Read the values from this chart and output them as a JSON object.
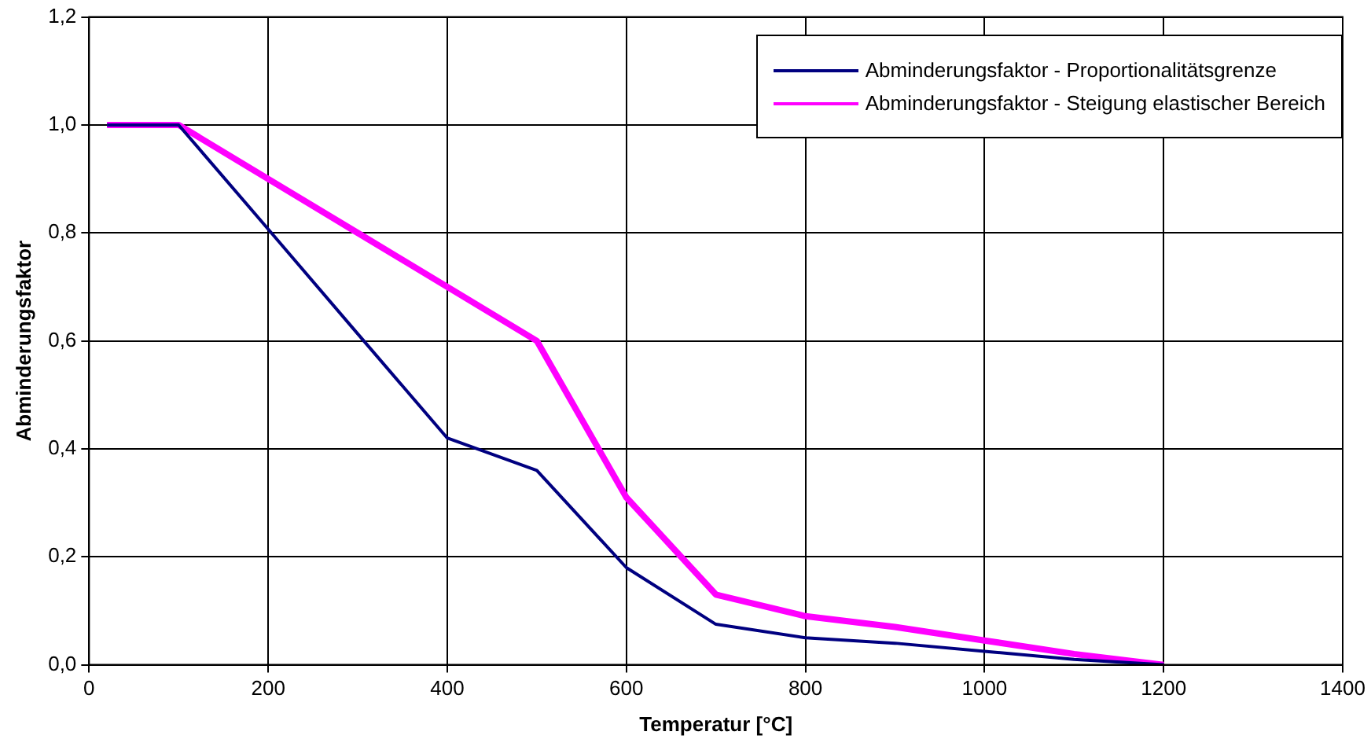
{
  "chart_data": {
    "type": "line",
    "xlabel": "Temperatur [°C]",
    "ylabel": "Abminderungsfaktor",
    "xlim": [
      0,
      1400
    ],
    "xticks": [
      0,
      200,
      400,
      600,
      800,
      1000,
      1200,
      1400
    ],
    "ylim": [
      0,
      1.2
    ],
    "yticks": [
      {
        "value": 0,
        "label": "0,0"
      },
      {
        "value": 0.2,
        "label": "0,2"
      },
      {
        "value": 0.4,
        "label": "0,4"
      },
      {
        "value": 0.6,
        "label": "0,6"
      },
      {
        "value": 0.8,
        "label": "0,8"
      },
      {
        "value": 1,
        "label": "1,0"
      },
      {
        "value": 1.2,
        "label": "1,2"
      }
    ],
    "grid": true,
    "legend": "top right",
    "marker": "none",
    "line_style": "solid",
    "series": [
      {
        "name": "Abminderungsfaktor - Proportionalitätsgrenze",
        "color": "#000080",
        "x": [
          20,
          100,
          200,
          300,
          400,
          500,
          600,
          700,
          800,
          900,
          1000,
          1100,
          1200
        ],
        "values": [
          1,
          1,
          0.807,
          0.613,
          0.42,
          0.36,
          0.18,
          0.075,
          0.05,
          0.04,
          0.025,
          0.01,
          0
        ]
      },
      {
        "name": "Abminderungsfaktor - Steigung elastischer Bereich",
        "color": "#ff00ff",
        "x": [
          20,
          100,
          200,
          300,
          400,
          500,
          600,
          700,
          800,
          900,
          1000,
          1100,
          1200
        ],
        "values": [
          1,
          1,
          0.9,
          0.8,
          0.7,
          0.6,
          0.31,
          0.13,
          0.09,
          0.07,
          0.045,
          0.02,
          0
        ]
      }
    ]
  }
}
